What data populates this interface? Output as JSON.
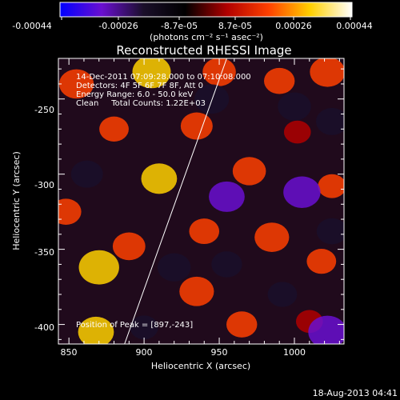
{
  "colorbar": {
    "ticks": [
      "-0.00044",
      "-0.00026",
      "-8.7e-05",
      "8.7e-05",
      "0.00026",
      "0.00044"
    ],
    "units": "(photons cm⁻² s⁻¹ asec⁻²)",
    "colors": [
      "#0000ff",
      "#6a0fd0",
      "#1a0f2a",
      "#000000",
      "#b00000",
      "#ff4000",
      "#ffd000",
      "#ffffff"
    ]
  },
  "annotations": {
    "line1": "14-Dec-2011 07:09:28.000 to 07:10:08.000",
    "line2": "Detectors: 4F 5F 6F 7F 8F, Att 0",
    "line3": "Energy Range: 6.0 - 50.0 keV",
    "line4": "Clean     Total Counts: 1.22E+03",
    "peak": "Position of Peak = [897,-243]"
  },
  "footer": {
    "timestamp": "18-Aug-2013 04:41"
  },
  "chart_data": {
    "type": "heatmap",
    "title": "Reconstructed RHESSI Image",
    "xlabel": "Heliocentric X (arcsec)",
    "ylabel": "Heliocentric Y (arcsec)",
    "xlim": [
      843,
      1033
    ],
    "ylim": [
      -413,
      -223
    ],
    "xticks": [
      850,
      900,
      950,
      1000
    ],
    "yticks": [
      -250,
      -300,
      -350,
      -400
    ],
    "colorbar_range": [
      -0.00044,
      0.00044
    ],
    "limb_line": {
      "x": [
        887,
        955
      ],
      "y": [
        -413,
        -223
      ]
    },
    "peak_position": [
      897,
      -243
    ],
    "blobs": [
      {
        "x": 855,
        "y": -240,
        "v": 0.00024
      },
      {
        "x": 905,
        "y": -232,
        "v": 0.0003
      },
      {
        "x": 950,
        "y": -232,
        "v": 0.00022
      },
      {
        "x": 990,
        "y": -238,
        "v": 0.00018
      },
      {
        "x": 1022,
        "y": -232,
        "v": 0.00025
      },
      {
        "x": 880,
        "y": -270,
        "v": 0.00016
      },
      {
        "x": 935,
        "y": -268,
        "v": 0.0002
      },
      {
        "x": 1002,
        "y": -272,
        "v": 0.00012
      },
      {
        "x": 910,
        "y": -303,
        "v": 0.00026
      },
      {
        "x": 970,
        "y": -298,
        "v": 0.00022
      },
      {
        "x": 1025,
        "y": -308,
        "v": 0.00014
      },
      {
        "x": 848,
        "y": -325,
        "v": 0.00018
      },
      {
        "x": 890,
        "y": -348,
        "v": 0.00021
      },
      {
        "x": 940,
        "y": -338,
        "v": 0.00017
      },
      {
        "x": 985,
        "y": -342,
        "v": 0.00024
      },
      {
        "x": 1018,
        "y": -358,
        "v": 0.00016
      },
      {
        "x": 870,
        "y": -362,
        "v": 0.00033
      },
      {
        "x": 935,
        "y": -378,
        "v": 0.00024
      },
      {
        "x": 965,
        "y": -400,
        "v": 0.00018
      },
      {
        "x": 868,
        "y": -405,
        "v": 0.00026
      },
      {
        "x": 1010,
        "y": -398,
        "v": 0.00012
      },
      {
        "x": 945,
        "y": -250,
        "v": -0.00024
      },
      {
        "x": 1000,
        "y": -255,
        "v": -0.00022
      },
      {
        "x": 1025,
        "y": -265,
        "v": -0.0002
      },
      {
        "x": 955,
        "y": -315,
        "v": -0.00026
      },
      {
        "x": 1005,
        "y": -312,
        "v": -0.00028
      },
      {
        "x": 1025,
        "y": -338,
        "v": -0.00018
      },
      {
        "x": 862,
        "y": -300,
        "v": -0.0002
      },
      {
        "x": 920,
        "y": -362,
        "v": -0.00022
      },
      {
        "x": 955,
        "y": -360,
        "v": -0.00018
      },
      {
        "x": 992,
        "y": -380,
        "v": -0.00016
      },
      {
        "x": 1022,
        "y": -405,
        "v": -0.0003
      },
      {
        "x": 900,
        "y": -402,
        "v": -0.00014
      }
    ]
  }
}
